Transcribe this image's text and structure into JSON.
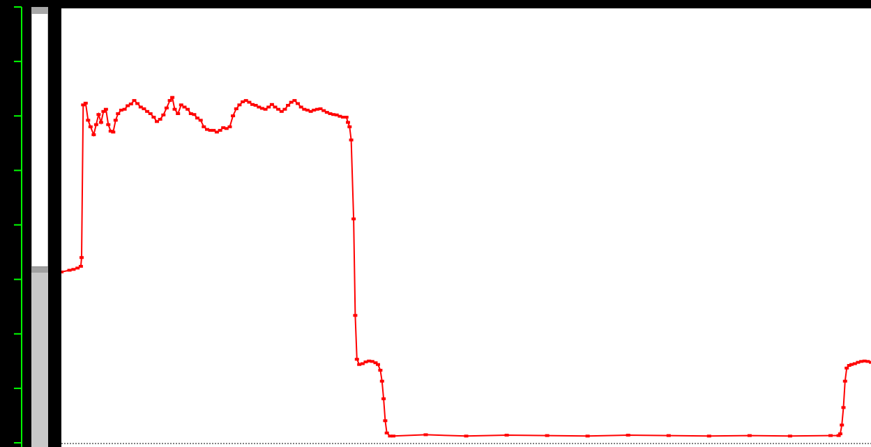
{
  "colors": {
    "background": "#000000",
    "axis": "#00ff00",
    "trace": "#ff0000",
    "plot_background": "#ffffff",
    "meter_track": "#ffffff",
    "meter_fill": "#c8c8c8"
  },
  "meter": {
    "level": 0.41
  },
  "axis": {
    "tick_count": 9
  },
  "chart_data": {
    "type": "line",
    "series": [
      {
        "color": "#ff0000",
        "points": [
          [
            0,
            0.399
          ],
          [
            0.01,
            0.403
          ],
          [
            0.015,
            0.405
          ],
          [
            0.02,
            0.408
          ],
          [
            0.024,
            0.412
          ],
          [
            0.025,
            0.432
          ],
          [
            0.027,
            0.78
          ],
          [
            0.03,
            0.784
          ],
          [
            0.033,
            0.745
          ],
          [
            0.036,
            0.73
          ],
          [
            0.04,
            0.712
          ],
          [
            0.043,
            0.735
          ],
          [
            0.046,
            0.758
          ],
          [
            0.049,
            0.74
          ],
          [
            0.052,
            0.765
          ],
          [
            0.055,
            0.77
          ],
          [
            0.058,
            0.735
          ],
          [
            0.061,
            0.72
          ],
          [
            0.064,
            0.718
          ],
          [
            0.067,
            0.745
          ],
          [
            0.07,
            0.76
          ],
          [
            0.074,
            0.768
          ],
          [
            0.078,
            0.77
          ],
          [
            0.082,
            0.778
          ],
          [
            0.086,
            0.782
          ],
          [
            0.09,
            0.79
          ],
          [
            0.094,
            0.783
          ],
          [
            0.098,
            0.775
          ],
          [
            0.102,
            0.771
          ],
          [
            0.106,
            0.765
          ],
          [
            0.11,
            0.76
          ],
          [
            0.114,
            0.752
          ],
          [
            0.118,
            0.742
          ],
          [
            0.122,
            0.747
          ],
          [
            0.126,
            0.757
          ],
          [
            0.13,
            0.773
          ],
          [
            0.134,
            0.79
          ],
          [
            0.137,
            0.797
          ],
          [
            0.14,
            0.77
          ],
          [
            0.144,
            0.76
          ],
          [
            0.148,
            0.78
          ],
          [
            0.152,
            0.775
          ],
          [
            0.156,
            0.77
          ],
          [
            0.16,
            0.76
          ],
          [
            0.164,
            0.758
          ],
          [
            0.168,
            0.75
          ],
          [
            0.172,
            0.745
          ],
          [
            0.176,
            0.73
          ],
          [
            0.18,
            0.724
          ],
          [
            0.184,
            0.722
          ],
          [
            0.188,
            0.722
          ],
          [
            0.192,
            0.718
          ],
          [
            0.196,
            0.722
          ],
          [
            0.2,
            0.728
          ],
          [
            0.204,
            0.726
          ],
          [
            0.208,
            0.73
          ],
          [
            0.212,
            0.755
          ],
          [
            0.216,
            0.771
          ],
          [
            0.22,
            0.78
          ],
          [
            0.224,
            0.787
          ],
          [
            0.228,
            0.79
          ],
          [
            0.232,
            0.786
          ],
          [
            0.236,
            0.781
          ],
          [
            0.24,
            0.779
          ],
          [
            0.244,
            0.775
          ],
          [
            0.248,
            0.772
          ],
          [
            0.252,
            0.77
          ],
          [
            0.256,
            0.775
          ],
          [
            0.26,
            0.781
          ],
          [
            0.264,
            0.775
          ],
          [
            0.268,
            0.77
          ],
          [
            0.272,
            0.765
          ],
          [
            0.276,
            0.77
          ],
          [
            0.28,
            0.779
          ],
          [
            0.284,
            0.786
          ],
          [
            0.288,
            0.79
          ],
          [
            0.292,
            0.783
          ],
          [
            0.296,
            0.775
          ],
          [
            0.3,
            0.77
          ],
          [
            0.304,
            0.768
          ],
          [
            0.308,
            0.765
          ],
          [
            0.312,
            0.768
          ],
          [
            0.316,
            0.77
          ],
          [
            0.32,
            0.771
          ],
          [
            0.324,
            0.767
          ],
          [
            0.328,
            0.763
          ],
          [
            0.332,
            0.76
          ],
          [
            0.336,
            0.758
          ],
          [
            0.34,
            0.757
          ],
          [
            0.344,
            0.754
          ],
          [
            0.348,
            0.752
          ],
          [
            0.352,
            0.752
          ],
          [
            0.354,
            0.74
          ],
          [
            0.356,
            0.73
          ],
          [
            0.358,
            0.7
          ],
          [
            0.361,
            0.52
          ],
          [
            0.363,
            0.3
          ],
          [
            0.365,
            0.2
          ],
          [
            0.368,
            0.188
          ],
          [
            0.372,
            0.19
          ],
          [
            0.376,
            0.194
          ],
          [
            0.38,
            0.196
          ],
          [
            0.384,
            0.195
          ],
          [
            0.388,
            0.192
          ],
          [
            0.391,
            0.188
          ],
          [
            0.394,
            0.175
          ],
          [
            0.396,
            0.15
          ],
          [
            0.398,
            0.11
          ],
          [
            0.4,
            0.06
          ],
          [
            0.402,
            0.032
          ],
          [
            0.406,
            0.025
          ],
          [
            0.41,
            0.025
          ],
          [
            0.45,
            0.028
          ],
          [
            0.5,
            0.025
          ],
          [
            0.55,
            0.027
          ],
          [
            0.6,
            0.026
          ],
          [
            0.65,
            0.025
          ],
          [
            0.7,
            0.027
          ],
          [
            0.75,
            0.026
          ],
          [
            0.8,
            0.025
          ],
          [
            0.85,
            0.026
          ],
          [
            0.9,
            0.025
          ],
          [
            0.95,
            0.026
          ],
          [
            0.96,
            0.026
          ],
          [
            0.962,
            0.03
          ],
          [
            0.964,
            0.05
          ],
          [
            0.966,
            0.09
          ],
          [
            0.968,
            0.15
          ],
          [
            0.97,
            0.18
          ],
          [
            0.973,
            0.186
          ],
          [
            0.976,
            0.188
          ],
          [
            0.98,
            0.19
          ],
          [
            0.984,
            0.193
          ],
          [
            0.988,
            0.195
          ],
          [
            0.992,
            0.196
          ],
          [
            0.996,
            0.195
          ],
          [
            1.0,
            0.193
          ]
        ]
      }
    ],
    "x_range": [
      0,
      1
    ],
    "y_range": [
      0,
      1
    ],
    "grid": false
  }
}
